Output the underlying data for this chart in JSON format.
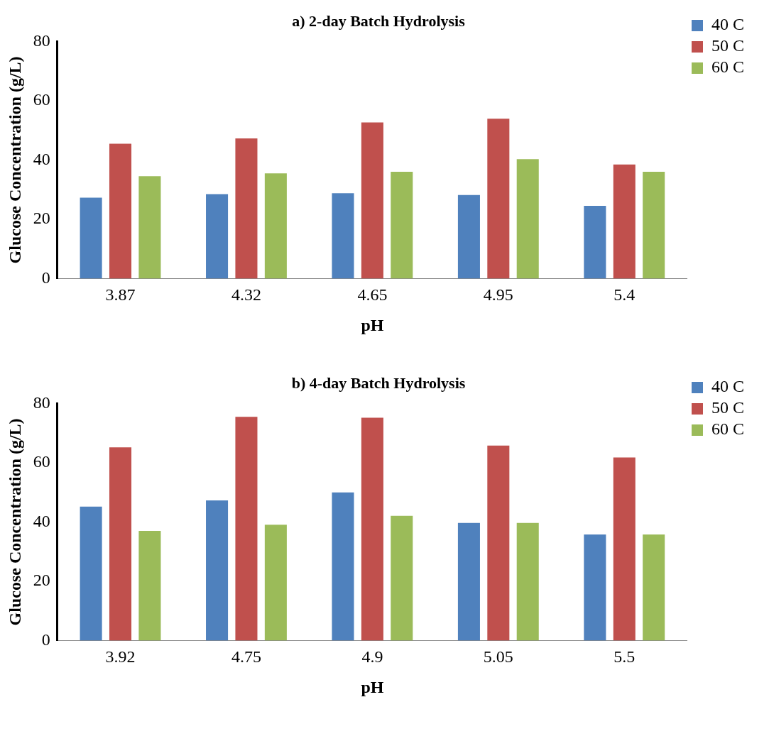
{
  "chart_data": [
    {
      "type": "bar",
      "title": "a) 2-day Batch Hydrolysis",
      "xlabel": "pH",
      "ylabel": "Glucose Concentration (g/L)",
      "categories": [
        "3.87",
        "4.32",
        "4.65",
        "4.95",
        "5.4"
      ],
      "series": [
        {
          "name": "40 C",
          "color": "#4f81bd",
          "values": [
            27.3,
            28.5,
            28.8,
            28.2,
            24.5
          ]
        },
        {
          "name": "50 C",
          "color": "#c0504d",
          "values": [
            45.5,
            47.3,
            52.7,
            53.9,
            38.5
          ]
        },
        {
          "name": "60 C",
          "color": "#9bbb59",
          "values": [
            34.5,
            35.5,
            36,
            40.3,
            36
          ]
        }
      ],
      "ylim": [
        0,
        80
      ],
      "yticks": [
        0,
        20,
        40,
        60,
        80
      ],
      "grid": false,
      "legend": "top right"
    },
    {
      "type": "bar",
      "title": "b) 4-day Batch Hydrolysis",
      "xlabel": "pH",
      "ylabel": "Glucose Concentration (g/L)",
      "categories": [
        "3.92",
        "4.75",
        "4.9",
        "5.05",
        "5.5"
      ],
      "series": [
        {
          "name": "40 C",
          "color": "#4f81bd",
          "values": [
            45.2,
            47.3,
            50,
            39.7,
            35.8
          ]
        },
        {
          "name": "50 C",
          "color": "#c0504d",
          "values": [
            65.2,
            75.5,
            75.2,
            65.8,
            61.8
          ]
        },
        {
          "name": "60 C",
          "color": "#9bbb59",
          "values": [
            37,
            39.1,
            42.1,
            39.7,
            35.8
          ]
        }
      ],
      "ylim": [
        0,
        80
      ],
      "yticks": [
        0,
        20,
        40,
        60,
        80
      ],
      "grid": false,
      "legend": "top right"
    }
  ]
}
